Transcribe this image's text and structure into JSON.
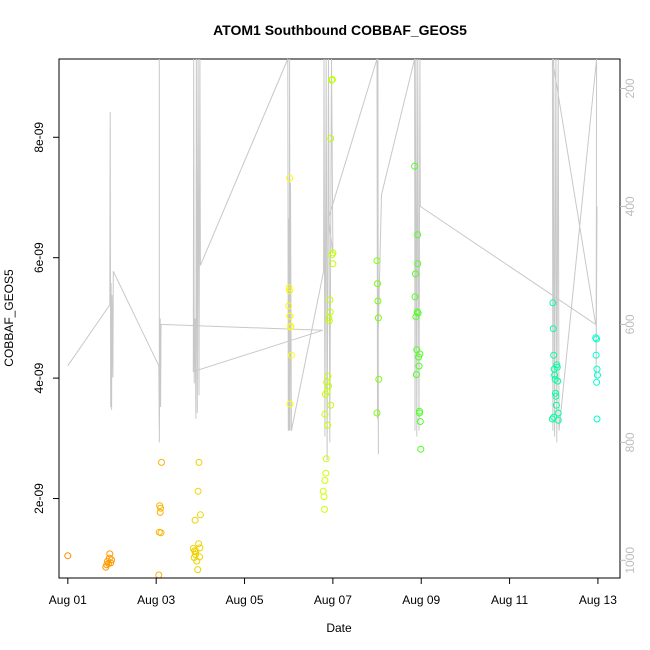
{
  "chart_data": {
    "type": "scatter",
    "title": "ATOM1 Southbound COBBAF_GEOS5",
    "xlabel": "Date",
    "ylabel": "COBBAF_GEOS5",
    "x_unit": "days in August (day 1 = Aug 01)",
    "xlim": [
      0.8,
      13.5
    ],
    "ylim": [
      6.8e-10,
      9.3e-09
    ],
    "x_ticks": [
      {
        "x": 1,
        "label": "Aug 01"
      },
      {
        "x": 3,
        "label": "Aug 03"
      },
      {
        "x": 5,
        "label": "Aug 05"
      },
      {
        "x": 7,
        "label": "Aug 07"
      },
      {
        "x": 9,
        "label": "Aug 09"
      },
      {
        "x": 11,
        "label": "Aug 11"
      },
      {
        "x": 13,
        "label": "Aug 13"
      }
    ],
    "y_ticks": [
      {
        "y": 2e-09,
        "label": "2e-09"
      },
      {
        "y": 4e-09,
        "label": "4e-09"
      },
      {
        "y": 6e-09,
        "label": "6e-09"
      },
      {
        "y": 8e-09,
        "label": "8e-09"
      }
    ],
    "secondary_axis": {
      "side": "right",
      "reversed": true,
      "ylim": [
        1030,
        150
      ],
      "ticks": [
        {
          "y": 200,
          "label": "200"
        },
        {
          "y": 400,
          "label": "400"
        },
        {
          "y": 600,
          "label": "600"
        },
        {
          "y": 800,
          "label": "800"
        },
        {
          "y": 1000,
          "label": "1000"
        }
      ],
      "color": "#bdbdbd"
    },
    "colors": {
      "track": "#c8c8c8",
      "gradient": [
        "#ff8c00",
        "#ffa500",
        "#e6e600",
        "#ffff00",
        "#7fff00",
        "#33ff33",
        "#00ff7f",
        "#00ffcc"
      ]
    },
    "points": [
      {
        "x": 1.0,
        "y": 1.05e-09
      },
      {
        "x": 1.86,
        "y": 8.6e-10
      },
      {
        "x": 1.88,
        "y": 9e-10
      },
      {
        "x": 1.9,
        "y": 9.6e-10
      },
      {
        "x": 1.92,
        "y": 9.2e-10
      },
      {
        "x": 1.94,
        "y": 1.01e-09
      },
      {
        "x": 1.95,
        "y": 1.08e-09
      },
      {
        "x": 1.97,
        "y": 9.3e-10
      },
      {
        "x": 1.99,
        "y": 9.8e-10
      },
      {
        "x": 3.06,
        "y": 7.3e-10
      },
      {
        "x": 3.07,
        "y": 1.44e-09
      },
      {
        "x": 3.08,
        "y": 1.88e-09
      },
      {
        "x": 3.09,
        "y": 1.77e-09
      },
      {
        "x": 3.1,
        "y": 1.84e-09
      },
      {
        "x": 3.11,
        "y": 1.43e-09
      },
      {
        "x": 3.12,
        "y": 2.6e-09
      },
      {
        "x": 3.84,
        "y": 1.17e-09
      },
      {
        "x": 3.86,
        "y": 1.02e-09
      },
      {
        "x": 3.87,
        "y": 1.13e-09
      },
      {
        "x": 3.88,
        "y": 1.64e-09
      },
      {
        "x": 3.89,
        "y": 1.07e-09
      },
      {
        "x": 3.9,
        "y": 1.12e-09
      },
      {
        "x": 3.92,
        "y": 9.6e-10
      },
      {
        "x": 3.94,
        "y": 8.2e-10
      },
      {
        "x": 3.95,
        "y": 2.12e-09
      },
      {
        "x": 3.96,
        "y": 1.25e-09
      },
      {
        "x": 3.97,
        "y": 2.6e-09
      },
      {
        "x": 3.98,
        "y": 1.03e-09
      },
      {
        "x": 3.99,
        "y": 1.18e-09
      },
      {
        "x": 4.0,
        "y": 1.73e-09
      },
      {
        "x": 6.0,
        "y": 5.2e-09
      },
      {
        "x": 6.01,
        "y": 5.5e-09
      },
      {
        "x": 6.02,
        "y": 7.32e-09
      },
      {
        "x": 6.02,
        "y": 5.45e-09
      },
      {
        "x": 6.03,
        "y": 5.03e-09
      },
      {
        "x": 6.04,
        "y": 4.85e-09
      },
      {
        "x": 6.05,
        "y": 4.86e-09
      },
      {
        "x": 6.06,
        "y": 4.38e-09
      },
      {
        "x": 6.03,
        "y": 3.57e-09
      },
      {
        "x": 6.78,
        "y": 2.12e-09
      },
      {
        "x": 6.8,
        "y": 2.03e-09
      },
      {
        "x": 6.81,
        "y": 1.82e-09
      },
      {
        "x": 6.82,
        "y": 2.3e-09
      },
      {
        "x": 6.84,
        "y": 2.42e-09
      },
      {
        "x": 6.85,
        "y": 2.66e-09
      },
      {
        "x": 6.82,
        "y": 3.4e-09
      },
      {
        "x": 6.83,
        "y": 3.73e-09
      },
      {
        "x": 6.86,
        "y": 3.93e-09
      },
      {
        "x": 6.87,
        "y": 3.78e-09
      },
      {
        "x": 6.88,
        "y": 3.22e-09
      },
      {
        "x": 6.89,
        "y": 4.03e-09
      },
      {
        "x": 6.9,
        "y": 3.87e-09
      },
      {
        "x": 6.91,
        "y": 5e-09
      },
      {
        "x": 6.92,
        "y": 4.95e-09
      },
      {
        "x": 6.93,
        "y": 5.3e-09
      },
      {
        "x": 6.94,
        "y": 5.1e-09
      },
      {
        "x": 6.95,
        "y": 3.55e-09
      },
      {
        "x": 6.95,
        "y": 7.98e-09
      },
      {
        "x": 6.97,
        "y": 8.95e-09
      },
      {
        "x": 6.99,
        "y": 8.96e-09
      },
      {
        "x": 6.98,
        "y": 6.05e-09
      },
      {
        "x": 7.0,
        "y": 6.08e-09
      },
      {
        "x": 7.0,
        "y": 5.9e-09
      },
      {
        "x": 8.0,
        "y": 5.95e-09
      },
      {
        "x": 8.01,
        "y": 5.57e-09
      },
      {
        "x": 8.02,
        "y": 5.28e-09
      },
      {
        "x": 8.03,
        "y": 5e-09
      },
      {
        "x": 8.04,
        "y": 3.98e-09
      },
      {
        "x": 8.0,
        "y": 3.42e-09
      },
      {
        "x": 8.85,
        "y": 7.52e-09
      },
      {
        "x": 8.87,
        "y": 5.73e-09
      },
      {
        "x": 8.86,
        "y": 5.35e-09
      },
      {
        "x": 8.88,
        "y": 5.02e-09
      },
      {
        "x": 8.89,
        "y": 4.06e-09
      },
      {
        "x": 8.9,
        "y": 4.47e-09
      },
      {
        "x": 8.91,
        "y": 5.1e-09
      },
      {
        "x": 8.92,
        "y": 6.38e-09
      },
      {
        "x": 8.92,
        "y": 5.9e-09
      },
      {
        "x": 8.93,
        "y": 5.08e-09
      },
      {
        "x": 8.94,
        "y": 4.35e-09
      },
      {
        "x": 8.95,
        "y": 4.2e-09
      },
      {
        "x": 8.96,
        "y": 3.45e-09
      },
      {
        "x": 8.97,
        "y": 4.4e-09
      },
      {
        "x": 8.98,
        "y": 3.28e-09
      },
      {
        "x": 8.99,
        "y": 2.82e-09
      },
      {
        "x": 8.96,
        "y": 3.42e-09
      },
      {
        "x": 11.98,
        "y": 5.25e-09
      },
      {
        "x": 11.99,
        "y": 4.82e-09
      },
      {
        "x": 12.0,
        "y": 4.38e-09
      },
      {
        "x": 12.01,
        "y": 4.15e-09
      },
      {
        "x": 12.02,
        "y": 4.05e-09
      },
      {
        "x": 12.03,
        "y": 3.98e-09
      },
      {
        "x": 12.04,
        "y": 3.75e-09
      },
      {
        "x": 12.05,
        "y": 3.7e-09
      },
      {
        "x": 12.06,
        "y": 3.55e-09
      },
      {
        "x": 12.07,
        "y": 4.22e-09
      },
      {
        "x": 12.08,
        "y": 4.18e-09
      },
      {
        "x": 12.09,
        "y": 3.95e-09
      },
      {
        "x": 12.1,
        "y": 3.42e-09
      },
      {
        "x": 12.1,
        "y": 3.3e-09
      },
      {
        "x": 11.97,
        "y": 3.32e-09
      },
      {
        "x": 12.0,
        "y": 3.35e-09
      },
      {
        "x": 12.95,
        "y": 4.67e-09
      },
      {
        "x": 12.97,
        "y": 4.65e-09
      },
      {
        "x": 12.96,
        "y": 4.38e-09
      },
      {
        "x": 12.98,
        "y": 4.15e-09
      },
      {
        "x": 12.99,
        "y": 4.05e-09
      },
      {
        "x": 12.97,
        "y": 3.93e-09
      },
      {
        "x": 12.98,
        "y": 3.32e-09
      }
    ],
    "track": [
      [
        1.0,
        670
      ],
      [
        1.95,
        567
      ],
      [
        1.96,
        240
      ],
      [
        1.97,
        740
      ],
      [
        1.98,
        530
      ],
      [
        1.99,
        745
      ],
      [
        2.0,
        550
      ],
      [
        2.01,
        600
      ],
      [
        2.02,
        690
      ],
      [
        2.03,
        510
      ],
      [
        3.06,
        670
      ],
      [
        3.07,
        780
      ],
      [
        3.07,
        150
      ],
      [
        3.07,
        800
      ],
      [
        3.08,
        700
      ],
      [
        3.09,
        590
      ],
      [
        3.1,
        740
      ],
      [
        3.11,
        600
      ],
      [
        6.77,
        610
      ],
      [
        3.84,
        680
      ],
      [
        3.85,
        150
      ],
      [
        3.86,
        700
      ],
      [
        3.88,
        590
      ],
      [
        3.9,
        760
      ],
      [
        3.91,
        150
      ],
      [
        3.93,
        750
      ],
      [
        3.95,
        150
      ],
      [
        3.97,
        720
      ],
      [
        3.99,
        150
      ],
      [
        4.0,
        500
      ],
      [
        5.98,
        150
      ],
      [
        5.99,
        780
      ],
      [
        6.0,
        420
      ],
      [
        6.01,
        780
      ],
      [
        6.02,
        150
      ],
      [
        6.03,
        780
      ],
      [
        6.04,
        360
      ],
      [
        6.06,
        780
      ],
      [
        6.79,
        510
      ],
      [
        6.8,
        150
      ],
      [
        6.82,
        790
      ],
      [
        6.85,
        150
      ],
      [
        6.87,
        830
      ],
      [
        6.9,
        150
      ],
      [
        6.93,
        800
      ],
      [
        6.97,
        150
      ],
      [
        7.0,
        480
      ],
      [
        6.9,
        420
      ],
      [
        8.0,
        150
      ],
      [
        8.01,
        760
      ],
      [
        8.02,
        150
      ],
      [
        8.03,
        820
      ],
      [
        8.02,
        640
      ],
      [
        8.1,
        380
      ],
      [
        8.85,
        150
      ],
      [
        8.86,
        780
      ],
      [
        8.88,
        150
      ],
      [
        8.9,
        790
      ],
      [
        8.92,
        150
      ],
      [
        8.95,
        780
      ],
      [
        8.97,
        150
      ],
      [
        8.98,
        400
      ],
      [
        12.95,
        600
      ],
      [
        11.97,
        150
      ],
      [
        11.98,
        780
      ],
      [
        12.0,
        150
      ],
      [
        12.02,
        790
      ],
      [
        12.05,
        150
      ],
      [
        12.07,
        800
      ],
      [
        12.1,
        150
      ],
      [
        12.12,
        780
      ],
      [
        12.97,
        150
      ],
      [
        12.96,
        690
      ],
      [
        12.98,
        400
      ]
    ]
  }
}
